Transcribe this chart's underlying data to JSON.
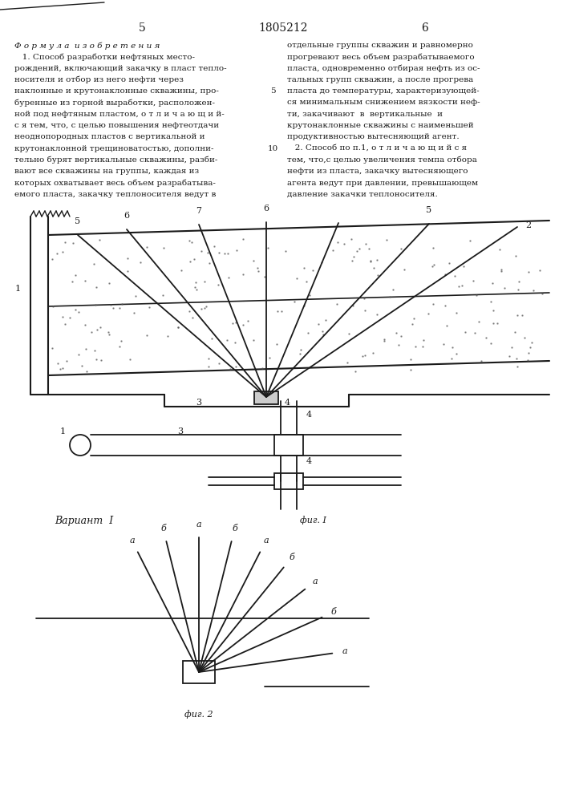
{
  "page_number_left": "5",
  "page_number_center": "1805212",
  "page_number_right": "6",
  "bg_color": "#ffffff",
  "line_color": "#1a1a1a",
  "text_color": "#1a1a1a",
  "left_column_text": [
    "Ф о р м у л а  и з о б р е т е н и я",
    "   1. Способ разработки нефтяных место-",
    "рождений, включающий закачку в пласт тепло-",
    "носителя и отбор из него нефти через",
    "наклонные и крутонаклонные скважины, про-",
    "буренные из горной выработки, расположен-",
    "ной под нефтяным пластом, о т л и ч а ю щ и й-",
    "с я тем, что, с целью повышения нефтеотдачи",
    "неоднопородных пластов с вертикальной и",
    "крутонаклонной трещиноватостью, дополни-",
    "тельно бурят вертикальные скважины, разби-",
    "вают все скважины на группы, каждая из",
    "которых охватывает весь объем разрабатыва-",
    "емого пласта, закачку теплоносителя ведут в"
  ],
  "right_column_text": [
    "отдельные группы скважин и равномерно",
    "прогревают весь объем разрабатываемого",
    "пласта, одновременно отбирая нефть из ос-",
    "тальных групп скважин, а после прогрева",
    "пласта до температуры, характеризующей-",
    "ся минимальным снижением вязкости неф-",
    "ти, закачивают  в  вертикальные  и",
    "крутонаклонные скважины с наименьшей",
    "продуктивностью вытесняющий агент.",
    "   2. Способ по п.1, о т л и ч а ю щ и й с я",
    "тем, что,с целью увеличения темпа отбора",
    "нефти из пласта, закачку вытесняющего",
    "агента ведут при давлении, превышающем",
    "давление закачки теплоносителя."
  ],
  "fig1_label": "фиг. I",
  "fig2_label": "фиг. 2",
  "variant_label": "Вариант  I",
  "line_number_5": "5",
  "line_number_10": "10"
}
